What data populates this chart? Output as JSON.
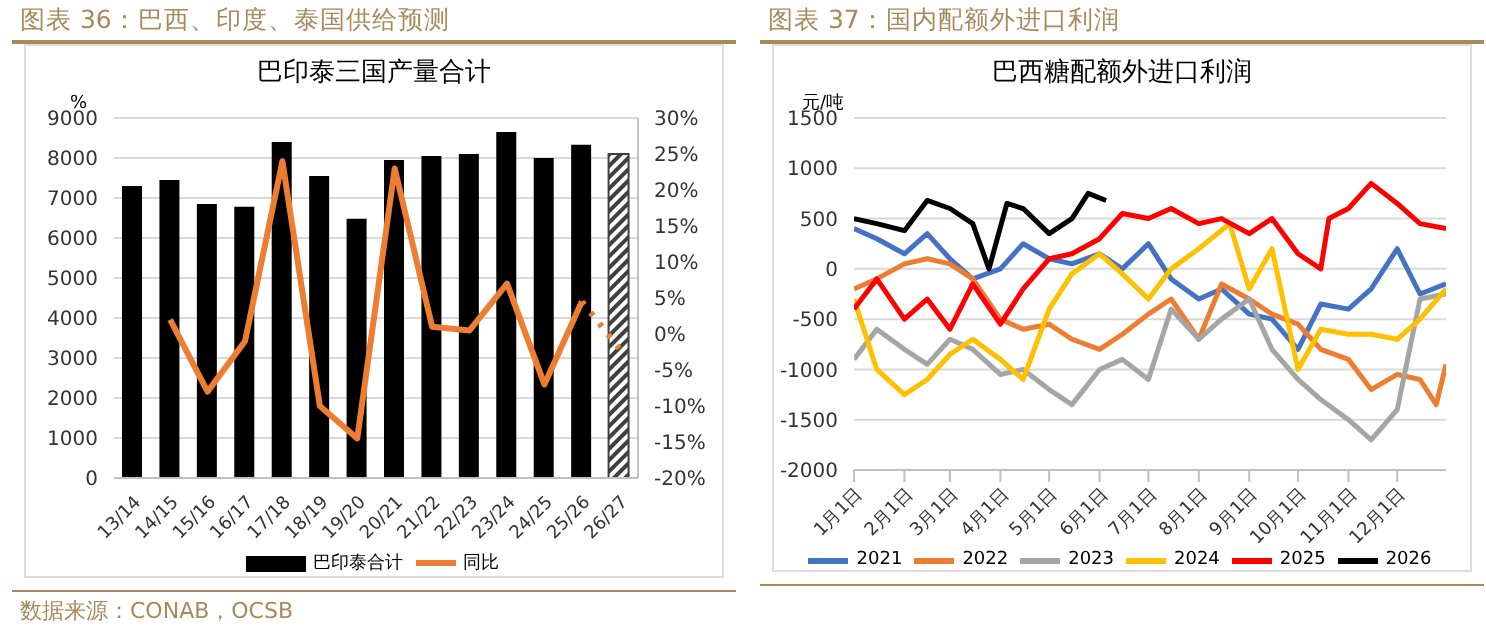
{
  "chart_data": [
    {
      "type": "bar",
      "title": "图表 36：巴西、印度、泰国供给预测",
      "subtitle": "巴印泰三国产量合计",
      "ylabel": "%",
      "categories": [
        "13/14",
        "14/15",
        "15/16",
        "16/17",
        "17/18",
        "18/19",
        "19/20",
        "20/21",
        "21/22",
        "22/23",
        "23/24",
        "24/25",
        "25/26",
        "26/27"
      ],
      "series": [
        {
          "name": "巴印泰合计",
          "type": "bar",
          "color": "#000000",
          "colors": [
            "#000000",
            "#000000",
            "#000000",
            "#000000",
            "#000000",
            "#000000",
            "#000000",
            "#000000",
            "#000000",
            "#000000",
            "#000000",
            "#000000",
            "#000000",
            "#404040"
          ],
          "values": [
            7300,
            7450,
            6850,
            6780,
            8400,
            7550,
            6480,
            7950,
            8050,
            8100,
            8650,
            8000,
            8330,
            8100
          ]
        },
        {
          "name": "同比",
          "type": "line",
          "axis": "y2",
          "color": "#ed7d31",
          "values": [
            null,
            2,
            -8,
            -1,
            24,
            -10,
            -14.5,
            23,
            1,
            0.5,
            7,
            -7,
            4.5,
            null
          ]
        },
        {
          "type": "line",
          "axis": "y2",
          "color": "#ed7d31",
          "line_style": "dotted",
          "values": [
            null,
            null,
            null,
            null,
            null,
            null,
            null,
            null,
            null,
            null,
            null,
            null,
            4.5,
            -2
          ]
        }
      ],
      "ylim": [
        0,
        9000
      ],
      "yticks": [
        0,
        1000,
        2000,
        3000,
        4000,
        5000,
        6000,
        7000,
        8000,
        9000
      ],
      "y2lim": [
        -20,
        30
      ],
      "y2ticks": [
        {
          "value": -20,
          "label": "-20%"
        },
        {
          "value": -15,
          "label": "-15%"
        },
        {
          "value": -10,
          "label": "-10%"
        },
        {
          "value": -5,
          "label": "-5%"
        },
        {
          "value": 0,
          "label": "0%"
        },
        {
          "value": 5,
          "label": "5%"
        },
        {
          "value": 10,
          "label": "10%"
        },
        {
          "value": 15,
          "label": "15%"
        },
        {
          "value": 20,
          "label": "20%"
        },
        {
          "value": 25,
          "label": "25%"
        },
        {
          "value": 30,
          "label": "30%"
        }
      ],
      "grid": "y",
      "legend": "bottom",
      "marker": "none",
      "annotations": [
        "数据来源：CONAB，OCSB"
      ]
    },
    {
      "type": "line",
      "title": "图表 37：国内配额外进口利润",
      "subtitle": "巴西糖配额外进口利润",
      "ylabel": "元/吨",
      "series": [
        {
          "name": "2021",
          "color": "#4472c4",
          "x": [
            "--01-01",
            "--01-15",
            "--02-01",
            "--02-15",
            "--03-01",
            "--03-15",
            "--04-01",
            "--04-15",
            "--05-01",
            "--05-15",
            "--06-01",
            "--06-15",
            "--07-01",
            "--07-15",
            "--08-01",
            "--08-15",
            "--09-01",
            "--09-15",
            "--10-01",
            "--10-15",
            "--11-01",
            "--11-15",
            "--12-01",
            "--12-15",
            "--12-31"
          ],
          "values": [
            400,
            300,
            150,
            350,
            100,
            -100,
            0,
            250,
            100,
            50,
            150,
            0,
            250,
            -100,
            -300,
            -200,
            -450,
            -500,
            -800,
            -350,
            -400,
            -200,
            200,
            -250,
            -150
          ]
        },
        {
          "name": "2022",
          "color": "#ed7d31",
          "x": [
            "--01-01",
            "--01-15",
            "--02-01",
            "--02-15",
            "--03-01",
            "--03-15",
            "--04-01",
            "--04-15",
            "--05-01",
            "--05-15",
            "--06-01",
            "--06-15",
            "--07-01",
            "--07-15",
            "--08-01",
            "--08-15",
            "--09-01",
            "--09-15",
            "--10-01",
            "--10-15",
            "--11-01",
            "--11-15",
            "--12-01",
            "--12-15",
            "--12-25",
            "--12-31"
          ],
          "values": [
            -200,
            -100,
            50,
            100,
            50,
            -100,
            -500,
            -600,
            -550,
            -700,
            -800,
            -650,
            -450,
            -300,
            -700,
            -150,
            -300,
            -450,
            -550,
            -800,
            -900,
            -1200,
            -1050,
            -1100,
            -1350,
            -950
          ]
        },
        {
          "name": "2023",
          "color": "#a5a5a5",
          "x": [
            "--01-01",
            "--01-15",
            "--02-01",
            "--02-15",
            "--03-01",
            "--03-15",
            "--04-01",
            "--04-15",
            "--05-01",
            "--05-15",
            "--06-01",
            "--06-15",
            "--07-01",
            "--07-15",
            "--08-01",
            "--08-15",
            "--09-01",
            "--09-15",
            "--10-01",
            "--10-15",
            "--11-01",
            "--11-15",
            "--12-01",
            "--12-15",
            "--12-31"
          ],
          "values": [
            -900,
            -600,
            -800,
            -950,
            -700,
            -800,
            -1050,
            -1000,
            -1200,
            -1350,
            -1000,
            -900,
            -1100,
            -400,
            -700,
            -500,
            -300,
            -800,
            -1100,
            -1300,
            -1500,
            -1700,
            -1400,
            -300,
            -250
          ]
        },
        {
          "name": "2024",
          "color": "#ffc000",
          "x": [
            "--01-01",
            "--01-15",
            "--02-01",
            "--02-15",
            "--03-01",
            "--03-15",
            "--04-01",
            "--04-15",
            "--05-01",
            "--05-15",
            "--06-01",
            "--06-15",
            "--07-01",
            "--07-15",
            "--08-01",
            "--08-20",
            "--09-01",
            "--09-15",
            "--10-01",
            "--10-15",
            "--11-01",
            "--11-15",
            "--12-01",
            "--12-15",
            "--12-31"
          ],
          "values": [
            -300,
            -1000,
            -1250,
            -1100,
            -850,
            -700,
            -900,
            -1100,
            -400,
            -50,
            150,
            -50,
            -300,
            0,
            200,
            450,
            -200,
            200,
            -1000,
            -600,
            -650,
            -650,
            -700,
            -500,
            -200
          ]
        },
        {
          "name": "2025",
          "color": "#ff0000",
          "x": [
            "--01-01",
            "--01-15",
            "--02-01",
            "--02-15",
            "--03-01",
            "--03-15",
            "--04-01",
            "--04-15",
            "--05-01",
            "--05-15",
            "--06-01",
            "--06-15",
            "--07-01",
            "--07-15",
            "--08-01",
            "--08-15",
            "--09-01",
            "--09-15",
            "--10-01",
            "--10-15",
            "--10-20",
            "--11-01",
            "--11-15",
            "--12-01",
            "--12-15",
            "--12-31"
          ],
          "values": [
            -400,
            -100,
            -500,
            -300,
            -600,
            -150,
            -550,
            -200,
            100,
            150,
            300,
            550,
            500,
            600,
            450,
            500,
            350,
            500,
            150,
            0,
            500,
            600,
            850,
            650,
            450,
            400
          ]
        },
        {
          "name": "2026",
          "color": "#000000",
          "x": [
            "--01-01",
            "--01-15",
            "--02-01",
            "--02-15",
            "--03-01",
            "--03-15",
            "--03-25",
            "--04-05",
            "--04-15",
            "--05-01",
            "--05-15",
            "--05-25",
            "--06-05"
          ],
          "values": [
            500,
            450,
            380,
            680,
            600,
            450,
            0,
            650,
            600,
            350,
            500,
            750,
            680
          ]
        }
      ],
      "xlim": [
        "--01-01",
        "--12-31"
      ],
      "xticks": [
        {
          "value": "--01-01",
          "label": "1月1日"
        },
        {
          "value": "--02-01",
          "label": "2月1日"
        },
        {
          "value": "--03-01",
          "label": "3月1日"
        },
        {
          "value": "--04-01",
          "label": "4月1日"
        },
        {
          "value": "--05-01",
          "label": "5月1日"
        },
        {
          "value": "--06-01",
          "label": "6月1日"
        },
        {
          "value": "--07-01",
          "label": "7月1日"
        },
        {
          "value": "--08-01",
          "label": "8月1日"
        },
        {
          "value": "--09-01",
          "label": "9月1日"
        },
        {
          "value": "--10-01",
          "label": "10月1日"
        },
        {
          "value": "--11-01",
          "label": "11月1日"
        },
        {
          "value": "--12-01",
          "label": "12月1日"
        }
      ],
      "ylim": [
        -2000,
        1500
      ],
      "yticks": [
        -2000,
        -1500,
        -1000,
        -500,
        0,
        500,
        1000,
        1500
      ],
      "grid": "y",
      "legend": "bottom",
      "marker": "none"
    }
  ]
}
